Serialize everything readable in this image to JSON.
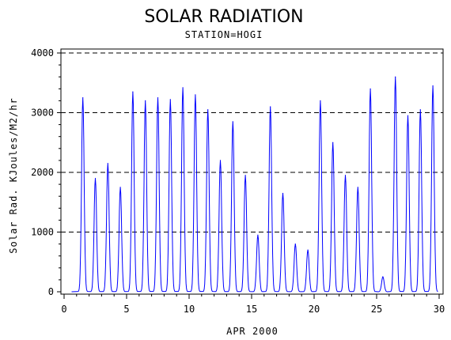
{
  "chart_data": {
    "type": "line",
    "title": "SOLAR RADIATION",
    "subtitle": "STATION=HOGI",
    "xlabel": "APR 2000",
    "ylabel": "Solar Rad. KJoules/M2/hr",
    "xlim": [
      0,
      30
    ],
    "ylim": [
      0,
      4000
    ],
    "xticks": [
      0,
      5,
      10,
      15,
      20,
      25,
      30
    ],
    "yticks": [
      0,
      1000,
      2000,
      3000,
      4000
    ],
    "grid": "horizontal-dashed",
    "series": [
      {
        "color": "#0000ff",
        "daily_peaks": [
          {
            "day": 1,
            "peak": 3250
          },
          {
            "day": 2,
            "peak": 1900
          },
          {
            "day": 3,
            "peak": 2150
          },
          {
            "day": 4,
            "peak": 1750
          },
          {
            "day": 5,
            "peak": 3350
          },
          {
            "day": 6,
            "peak": 3200
          },
          {
            "day": 7,
            "peak": 3250
          },
          {
            "day": 8,
            "peak": 3220
          },
          {
            "day": 9,
            "peak": 3420
          },
          {
            "day": 10,
            "peak": 3300
          },
          {
            "day": 11,
            "peak": 3050
          },
          {
            "day": 12,
            "peak": 2200
          },
          {
            "day": 13,
            "peak": 2850
          },
          {
            "day": 14,
            "peak": 1950
          },
          {
            "day": 15,
            "peak": 950
          },
          {
            "day": 16,
            "peak": 3100
          },
          {
            "day": 17,
            "peak": 1650
          },
          {
            "day": 18,
            "peak": 800
          },
          {
            "day": 19,
            "peak": 700
          },
          {
            "day": 20,
            "peak": 3200
          },
          {
            "day": 21,
            "peak": 2500
          },
          {
            "day": 22,
            "peak": 1950
          },
          {
            "day": 23,
            "peak": 1750
          },
          {
            "day": 24,
            "peak": 3400
          },
          {
            "day": 25,
            "peak": 250
          },
          {
            "day": 26,
            "peak": 3600
          },
          {
            "day": 27,
            "peak": 2950
          },
          {
            "day": 28,
            "peak": 3050
          },
          {
            "day": 29,
            "peak": 3450
          }
        ]
      }
    ]
  }
}
